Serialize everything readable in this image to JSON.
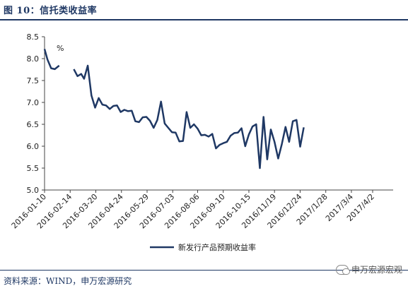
{
  "header": {
    "title": "图 10：信托类收益率"
  },
  "footer": {
    "source": "资料来源：WIND，申万宏源研究"
  },
  "watermark": {
    "text": "申万宏源宏观",
    "icon": "wechat-icon"
  },
  "chart_data": {
    "type": "line",
    "title": "",
    "unit_label": "%",
    "xlabel": "",
    "ylabel": "",
    "ylim": [
      5.0,
      8.5
    ],
    "yticks": [
      "5.0",
      "5.5",
      "6.0",
      "6.5",
      "7.0",
      "7.5",
      "8.0",
      "8.5"
    ],
    "xlim": [
      "2016-01-10",
      "2017-04-30"
    ],
    "xticks": [
      "2016-01-10",
      "2016-02-14",
      "2016-03-20",
      "2016-04-24",
      "2016-05-29",
      "2016-07-03",
      "2016-08-06",
      "2016-09-10",
      "2016-10-15",
      "2016/11/19",
      "2016/12/24",
      "2017/1/28",
      "2017/3/4",
      "2017/4/2"
    ],
    "grid": false,
    "legend_position": "bottom",
    "line_color": "#1f3864",
    "series": [
      {
        "name": "新发行产品预期收益率",
        "segments": [
          [
            [
              "2016-01-10",
              8.22
            ],
            [
              "2016-01-14",
              7.98
            ],
            [
              "2016-01-19",
              7.78
            ],
            [
              "2016-01-24",
              7.76
            ],
            [
              "2016-01-30",
              7.84
            ]
          ],
          [
            [
              "2016-02-19",
              7.76
            ],
            [
              "2016-02-24",
              7.6
            ],
            [
              "2016-02-29",
              7.65
            ],
            [
              "2016-03-04",
              7.54
            ],
            [
              "2016-03-09",
              7.84
            ],
            [
              "2016-03-14",
              7.16
            ],
            [
              "2016-03-19",
              6.88
            ],
            [
              "2016-03-24",
              7.1
            ],
            [
              "2016-03-29",
              6.95
            ],
            [
              "2016-04-03",
              6.93
            ],
            [
              "2016-04-08",
              6.85
            ],
            [
              "2016-04-13",
              6.92
            ],
            [
              "2016-04-18",
              6.93
            ],
            [
              "2016-04-23",
              6.78
            ],
            [
              "2016-04-28",
              6.83
            ],
            [
              "2016-05-03",
              6.8
            ],
            [
              "2016-05-08",
              6.81
            ],
            [
              "2016-05-13",
              6.57
            ],
            [
              "2016-05-18",
              6.55
            ],
            [
              "2016-05-23",
              6.66
            ],
            [
              "2016-05-28",
              6.67
            ],
            [
              "2016-06-02",
              6.58
            ],
            [
              "2016-06-07",
              6.42
            ],
            [
              "2016-06-12",
              6.6
            ],
            [
              "2016-06-17",
              7.02
            ],
            [
              "2016-06-22",
              6.52
            ],
            [
              "2016-06-27",
              6.42
            ],
            [
              "2016-07-02",
              6.32
            ],
            [
              "2016-07-07",
              6.31
            ],
            [
              "2016-07-12",
              6.11
            ],
            [
              "2016-07-17",
              6.12
            ],
            [
              "2016-07-22",
              6.78
            ],
            [
              "2016-07-27",
              6.42
            ],
            [
              "2016-08-01",
              6.5
            ],
            [
              "2016-08-06",
              6.4
            ],
            [
              "2016-08-11",
              6.25
            ],
            [
              "2016-08-16",
              6.26
            ],
            [
              "2016-08-21",
              6.22
            ],
            [
              "2016-08-26",
              6.28
            ],
            [
              "2016-08-31",
              5.95
            ],
            [
              "2016-09-05",
              6.03
            ],
            [
              "2016-09-10",
              6.07
            ],
            [
              "2016-09-15",
              6.1
            ],
            [
              "2016-09-20",
              6.24
            ],
            [
              "2016-09-25",
              6.3
            ],
            [
              "2016-09-30",
              6.31
            ],
            [
              "2016-10-05",
              6.41
            ],
            [
              "2016-10-10",
              6.0
            ],
            [
              "2016-10-15",
              6.27
            ],
            [
              "2016-10-20",
              6.45
            ],
            [
              "2016-10-25",
              6.5
            ],
            [
              "2016-10-30",
              5.5
            ],
            [
              "2016-11-04",
              6.67
            ],
            [
              "2016-11-09",
              5.7
            ],
            [
              "2016-11-14",
              6.38
            ],
            [
              "2016-11-19",
              6.1
            ],
            [
              "2016-11-24",
              5.72
            ],
            [
              "2016-11-29",
              6.05
            ],
            [
              "2016-12-04",
              6.44
            ],
            [
              "2016-12-09",
              6.1
            ],
            [
              "2016-12-14",
              6.57
            ],
            [
              "2016-12-19",
              6.6
            ],
            [
              "2016-12-24",
              5.99
            ],
            [
              "2016-12-29",
              6.43
            ]
          ]
        ]
      }
    ]
  }
}
